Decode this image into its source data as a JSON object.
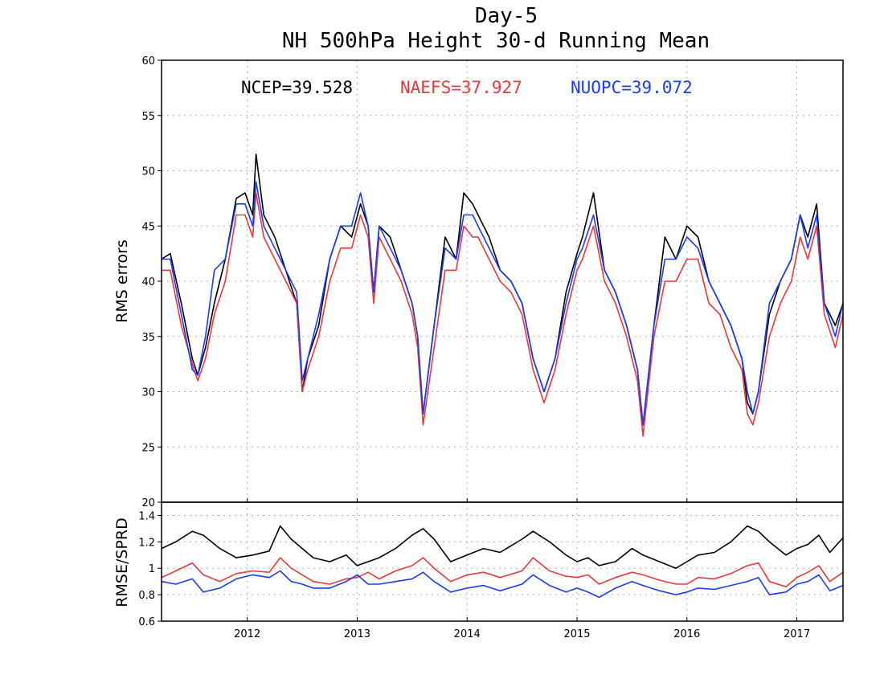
{
  "chart_data": [
    {
      "type": "line",
      "title": "Day-5",
      "subtitle": "NH 500hPa Height 30-d Running Mean",
      "ylabel": "RMS errors",
      "ylim": [
        20,
        60
      ],
      "yticks": [
        "20",
        "25",
        "30",
        "35",
        "40",
        "45",
        "50",
        "55",
        "60"
      ],
      "xlim": [
        2011.22,
        2017.42
      ],
      "xticks": [
        2012,
        2013,
        2014,
        2015,
        2016,
        2017
      ],
      "grid": true,
      "legend": "top, inline",
      "legend_entries": [
        {
          "label": "NCEP=39.528",
          "color": "#000000"
        },
        {
          "label": "NAEFS=37.927",
          "color": "#e8393c"
        },
        {
          "label": "NUOPC=39.072",
          "color": "#1b3cf5"
        }
      ],
      "series": [
        {
          "color": "#000000",
          "x": [
            2011.22,
            2011.3,
            2011.4,
            2011.5,
            2011.55,
            2011.62,
            2011.7,
            2011.8,
            2011.9,
            2011.98,
            2012.05,
            2012.08,
            2012.15,
            2012.25,
            2012.35,
            2012.45,
            2012.5,
            2012.55,
            2012.65,
            2012.75,
            2012.85,
            2012.95,
            2013.03,
            2013.1,
            2013.15,
            2013.2,
            2013.3,
            2013.4,
            2013.5,
            2013.55,
            2013.6,
            2013.7,
            2013.8,
            2013.9,
            2013.97,
            2014.05,
            2014.1,
            2014.2,
            2014.3,
            2014.4,
            2014.5,
            2014.6,
            2014.7,
            2014.8,
            2014.9,
            2015.0,
            2015.05,
            2015.15,
            2015.25,
            2015.35,
            2015.45,
            2015.55,
            2015.6,
            2015.7,
            2015.8,
            2015.9,
            2016.0,
            2016.1,
            2016.2,
            2016.3,
            2016.4,
            2016.5,
            2016.55,
            2016.6,
            2016.65,
            2016.75,
            2016.85,
            2016.95,
            2017.03,
            2017.1,
            2017.18,
            2017.25,
            2017.35,
            2017.42
          ],
          "y": [
            42,
            42.5,
            38,
            33,
            31.5,
            34,
            38,
            42,
            47.5,
            48,
            46,
            51.5,
            46,
            44,
            41,
            38,
            30,
            33,
            36,
            42,
            45,
            44,
            47,
            45,
            39,
            45,
            44,
            41,
            38,
            35,
            28,
            36,
            44,
            42,
            48,
            47,
            46,
            44,
            41,
            40,
            38,
            33,
            30,
            33,
            39,
            42.5,
            44,
            48,
            41,
            39,
            36,
            32,
            27,
            36,
            44,
            42,
            45,
            44,
            40,
            38,
            36,
            33,
            29,
            28,
            30,
            37,
            40,
            42,
            46,
            44,
            47,
            38,
            36,
            38
          ]
        },
        {
          "color": "#e8393c",
          "x": [
            2011.22,
            2011.3,
            2011.4,
            2011.5,
            2011.55,
            2011.62,
            2011.7,
            2011.8,
            2011.9,
            2011.98,
            2012.05,
            2012.08,
            2012.15,
            2012.25,
            2012.35,
            2012.45,
            2012.5,
            2012.55,
            2012.65,
            2012.75,
            2012.85,
            2012.95,
            2013.03,
            2013.1,
            2013.15,
            2013.2,
            2013.3,
            2013.4,
            2013.5,
            2013.55,
            2013.6,
            2013.7,
            2013.8,
            2013.9,
            2013.97,
            2014.05,
            2014.1,
            2014.2,
            2014.3,
            2014.4,
            2014.5,
            2014.6,
            2014.7,
            2014.8,
            2014.9,
            2015.0,
            2015.05,
            2015.15,
            2015.25,
            2015.35,
            2015.45,
            2015.55,
            2015.6,
            2015.7,
            2015.8,
            2015.9,
            2016.0,
            2016.1,
            2016.2,
            2016.3,
            2016.4,
            2016.5,
            2016.55,
            2016.6,
            2016.65,
            2016.75,
            2016.85,
            2016.95,
            2017.03,
            2017.1,
            2017.18,
            2017.25,
            2017.35,
            2017.42
          ],
          "y": [
            41,
            41,
            36,
            32.5,
            31,
            33,
            37,
            40,
            46,
            46,
            44,
            48,
            44,
            42,
            40,
            38,
            30,
            32,
            35,
            40,
            43,
            43,
            46,
            44,
            38,
            44,
            42,
            40,
            37,
            34,
            27,
            34,
            41,
            41,
            45,
            44,
            44,
            42,
            40,
            39,
            37,
            32,
            29,
            32,
            37,
            41,
            42,
            45,
            40,
            38,
            35,
            31,
            26,
            35,
            40,
            40,
            42,
            42,
            38,
            37,
            34,
            32,
            28,
            27,
            29,
            35,
            38,
            40,
            44,
            42,
            45,
            37,
            34,
            37
          ]
        },
        {
          "color": "#1b3cf5",
          "x": [
            2011.22,
            2011.3,
            2011.4,
            2011.5,
            2011.55,
            2011.62,
            2011.7,
            2011.8,
            2011.9,
            2011.98,
            2012.05,
            2012.08,
            2012.15,
            2012.25,
            2012.35,
            2012.45,
            2012.5,
            2012.55,
            2012.65,
            2012.75,
            2012.85,
            2012.95,
            2013.03,
            2013.1,
            2013.15,
            2013.2,
            2013.3,
            2013.4,
            2013.5,
            2013.55,
            2013.6,
            2013.7,
            2013.8,
            2013.9,
            2013.97,
            2014.05,
            2014.1,
            2014.2,
            2014.3,
            2014.4,
            2014.5,
            2014.6,
            2014.7,
            2014.8,
            2014.9,
            2015.0,
            2015.05,
            2015.15,
            2015.25,
            2015.35,
            2015.45,
            2015.55,
            2015.6,
            2015.7,
            2015.8,
            2015.9,
            2016.0,
            2016.1,
            2016.2,
            2016.3,
            2016.4,
            2016.5,
            2016.55,
            2016.6,
            2016.65,
            2016.75,
            2016.85,
            2016.95,
            2017.03,
            2017.1,
            2017.18,
            2017.25,
            2017.35,
            2017.42
          ],
          "y": [
            42,
            42,
            37,
            32,
            31.5,
            35,
            41,
            42,
            47,
            47,
            45,
            49,
            45,
            43,
            41,
            39,
            31,
            33,
            37,
            42,
            45,
            45,
            48,
            45,
            39,
            45,
            43,
            41,
            38,
            35,
            28,
            36,
            43,
            42,
            46,
            46,
            45,
            43,
            41,
            40,
            38,
            33,
            30,
            33,
            38,
            42,
            43,
            46,
            41,
            39,
            36,
            32,
            27,
            36,
            42,
            42,
            44,
            43,
            40,
            38,
            36,
            33,
            30,
            28,
            30,
            38,
            40,
            42,
            46,
            43,
            46,
            38,
            35,
            38
          ]
        }
      ]
    },
    {
      "type": "line",
      "ylabel": "RMSE/SPRD",
      "ylim": [
        0.6,
        1.5
      ],
      "yticks": [
        "0.6",
        "0.8",
        "1",
        "1.2",
        "1.4"
      ],
      "xlim": [
        2011.22,
        2017.42
      ],
      "xticks": [
        "2012",
        "2013",
        "2014",
        "2015",
        "2016",
        "2017"
      ],
      "grid": true,
      "series": [
        {
          "color": "#000000",
          "x": [
            2011.22,
            2011.35,
            2011.5,
            2011.6,
            2011.75,
            2011.9,
            2012.05,
            2012.2,
            2012.3,
            2012.4,
            2012.5,
            2012.6,
            2012.75,
            2012.9,
            2013.0,
            2013.1,
            2013.2,
            2013.35,
            2013.5,
            2013.6,
            2013.7,
            2013.85,
            2014.0,
            2014.15,
            2014.3,
            2014.5,
            2014.6,
            2014.75,
            2014.9,
            2015.0,
            2015.1,
            2015.2,
            2015.35,
            2015.5,
            2015.6,
            2015.75,
            2015.9,
            2016.0,
            2016.1,
            2016.25,
            2016.4,
            2016.55,
            2016.65,
            2016.75,
            2016.9,
            2017.0,
            2017.1,
            2017.2,
            2017.3,
            2017.42
          ],
          "y": [
            1.15,
            1.2,
            1.28,
            1.25,
            1.15,
            1.08,
            1.1,
            1.13,
            1.32,
            1.22,
            1.15,
            1.08,
            1.05,
            1.1,
            1.02,
            1.05,
            1.08,
            1.15,
            1.25,
            1.3,
            1.22,
            1.05,
            1.1,
            1.15,
            1.12,
            1.22,
            1.28,
            1.2,
            1.1,
            1.05,
            1.08,
            1.02,
            1.05,
            1.15,
            1.1,
            1.05,
            1.0,
            1.05,
            1.1,
            1.12,
            1.2,
            1.32,
            1.28,
            1.2,
            1.1,
            1.15,
            1.18,
            1.25,
            1.12,
            1.23
          ]
        },
        {
          "color": "#e8393c",
          "x": [
            2011.22,
            2011.35,
            2011.5,
            2011.6,
            2011.75,
            2011.9,
            2012.05,
            2012.2,
            2012.3,
            2012.4,
            2012.5,
            2012.6,
            2012.75,
            2012.9,
            2013.0,
            2013.1,
            2013.2,
            2013.35,
            2013.5,
            2013.6,
            2013.7,
            2013.85,
            2014.0,
            2014.15,
            2014.3,
            2014.5,
            2014.6,
            2014.75,
            2014.9,
            2015.0,
            2015.1,
            2015.2,
            2015.35,
            2015.5,
            2015.6,
            2015.75,
            2015.9,
            2016.0,
            2016.1,
            2016.25,
            2016.4,
            2016.55,
            2016.65,
            2016.75,
            2016.9,
            2017.0,
            2017.1,
            2017.2,
            2017.3,
            2017.42
          ],
          "y": [
            0.93,
            0.98,
            1.04,
            0.95,
            0.9,
            0.96,
            0.98,
            0.97,
            1.08,
            1.0,
            0.95,
            0.9,
            0.88,
            0.92,
            0.93,
            0.97,
            0.92,
            0.98,
            1.02,
            1.08,
            1.0,
            0.9,
            0.95,
            0.97,
            0.93,
            0.98,
            1.08,
            0.98,
            0.94,
            0.93,
            0.95,
            0.88,
            0.93,
            0.97,
            0.95,
            0.91,
            0.88,
            0.88,
            0.93,
            0.92,
            0.96,
            1.02,
            1.04,
            0.9,
            0.86,
            0.93,
            0.97,
            1.02,
            0.9,
            0.97
          ]
        },
        {
          "color": "#1b3cf5",
          "x": [
            2011.22,
            2011.35,
            2011.5,
            2011.6,
            2011.75,
            2011.9,
            2012.05,
            2012.2,
            2012.3,
            2012.4,
            2012.5,
            2012.6,
            2012.75,
            2012.9,
            2013.0,
            2013.1,
            2013.2,
            2013.35,
            2013.5,
            2013.6,
            2013.7,
            2013.85,
            2014.0,
            2014.15,
            2014.3,
            2014.5,
            2014.6,
            2014.75,
            2014.9,
            2015.0,
            2015.1,
            2015.2,
            2015.35,
            2015.5,
            2015.6,
            2015.75,
            2015.9,
            2016.0,
            2016.1,
            2016.25,
            2016.4,
            2016.55,
            2016.65,
            2016.75,
            2016.9,
            2017.0,
            2017.1,
            2017.2,
            2017.3,
            2017.42
          ],
          "y": [
            0.9,
            0.88,
            0.92,
            0.82,
            0.85,
            0.92,
            0.95,
            0.93,
            0.98,
            0.9,
            0.88,
            0.85,
            0.85,
            0.9,
            0.95,
            0.88,
            0.88,
            0.9,
            0.92,
            0.97,
            0.9,
            0.82,
            0.85,
            0.87,
            0.83,
            0.88,
            0.95,
            0.87,
            0.82,
            0.85,
            0.82,
            0.78,
            0.85,
            0.9,
            0.87,
            0.83,
            0.8,
            0.82,
            0.85,
            0.84,
            0.87,
            0.9,
            0.93,
            0.8,
            0.82,
            0.88,
            0.9,
            0.95,
            0.83,
            0.87
          ]
        }
      ]
    }
  ]
}
